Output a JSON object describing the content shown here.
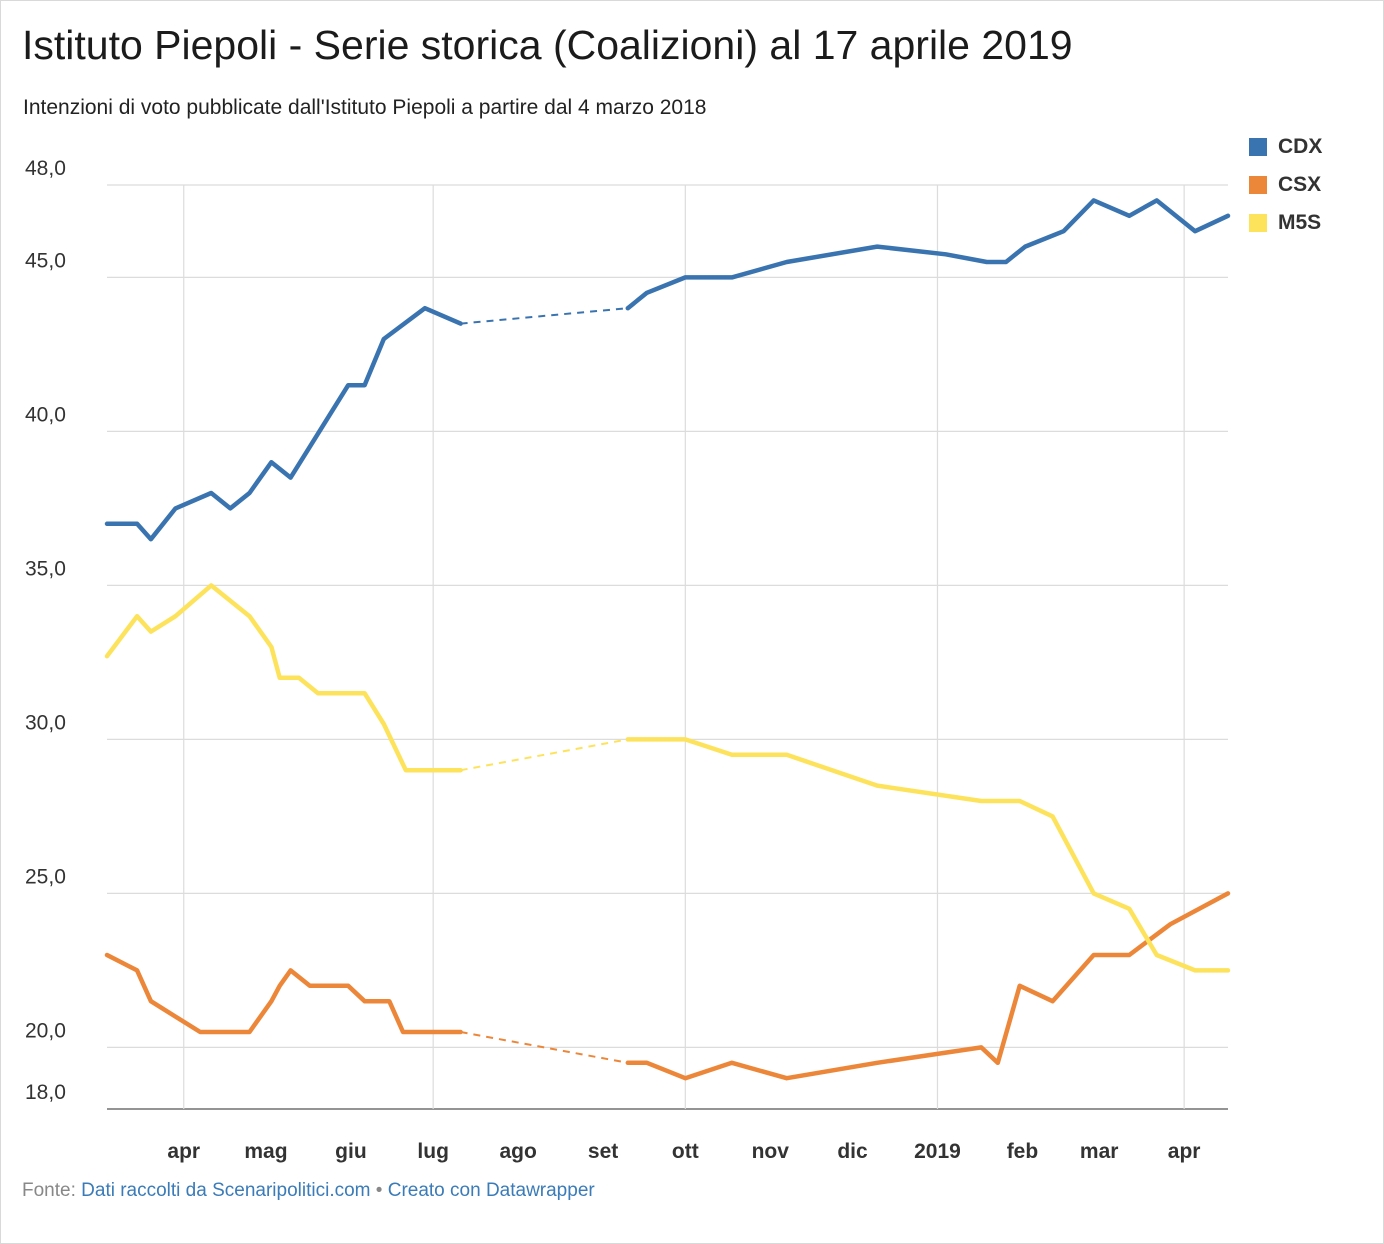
{
  "title": "Istituto Piepoli - Serie storica (Coalizioni) al 17 aprile 2019",
  "subtitle": "Intenzioni di voto pubblicate dall'Istituto Piepoli a partire dal 4 marzo 2018",
  "footer": {
    "source_prefix": "Fonte:",
    "source_link": "Dati raccolti da Scenaripolitici.com",
    "separator": "•",
    "made_with": "Creato con Datawrapper"
  },
  "legend": [
    {
      "name": "CDX",
      "color": "#3a74b0"
    },
    {
      "name": "CSX",
      "color": "#ec873a"
    },
    {
      "name": "M5S",
      "color": "#fde35c"
    }
  ],
  "chart_data": {
    "type": "line",
    "title": "Istituto Piepoli - Serie storica (Coalizioni) al 17 aprile 2019",
    "xlabel": "",
    "ylabel": "",
    "ylim": [
      18,
      48
    ],
    "xlim": [
      "2018-03-04",
      "2019-04-17"
    ],
    "y_ticks": [
      {
        "value": 48,
        "label": "48,0"
      },
      {
        "value": 45,
        "label": "45,0"
      },
      {
        "value": 40,
        "label": "40,0"
      },
      {
        "value": 35,
        "label": "35,0"
      },
      {
        "value": 30,
        "label": "30,0"
      },
      {
        "value": 25,
        "label": "25,0"
      },
      {
        "value": 20,
        "label": "20,0"
      },
      {
        "value": 18,
        "label": "18,0"
      }
    ],
    "x_ticks": [
      {
        "date": "2018-04-01",
        "label": "apr",
        "grid": true
      },
      {
        "date": "2018-05-01",
        "label": "mag",
        "grid": false
      },
      {
        "date": "2018-06-01",
        "label": "giu",
        "grid": false
      },
      {
        "date": "2018-07-01",
        "label": "lug",
        "grid": true
      },
      {
        "date": "2018-08-01",
        "label": "ago",
        "grid": false
      },
      {
        "date": "2018-09-01",
        "label": "set",
        "grid": false
      },
      {
        "date": "2018-10-01",
        "label": "ott",
        "grid": true
      },
      {
        "date": "2018-11-01",
        "label": "nov",
        "grid": false
      },
      {
        "date": "2018-12-01",
        "label": "dic",
        "grid": false
      },
      {
        "date": "2019-01-01",
        "label": "2019",
        "grid": true
      },
      {
        "date": "2019-02-01",
        "label": "feb",
        "grid": false
      },
      {
        "date": "2019-03-01",
        "label": "mar",
        "grid": false
      },
      {
        "date": "2019-04-01",
        "label": "apr",
        "grid": true
      }
    ],
    "gap": {
      "from": "2018-07-11",
      "to": "2018-09-10"
    },
    "series": [
      {
        "name": "CDX",
        "color": "#3a74b0",
        "points": [
          [
            "2018-03-04",
            37.0
          ],
          [
            "2018-03-15",
            37.0
          ],
          [
            "2018-03-20",
            36.5
          ],
          [
            "2018-03-29",
            37.5
          ],
          [
            "2018-04-11",
            38.0
          ],
          [
            "2018-04-18",
            37.5
          ],
          [
            "2018-04-25",
            38.0
          ],
          [
            "2018-05-03",
            39.0
          ],
          [
            "2018-05-10",
            38.5
          ],
          [
            "2018-05-17",
            39.5
          ],
          [
            "2018-05-31",
            41.5
          ],
          [
            "2018-06-06",
            41.5
          ],
          [
            "2018-06-13",
            43.0
          ],
          [
            "2018-06-28",
            44.0
          ],
          [
            "2018-07-11",
            43.5
          ],
          [
            "2018-09-10",
            44.0
          ],
          [
            "2018-09-17",
            44.5
          ],
          [
            "2018-10-01",
            45.0
          ],
          [
            "2018-10-18",
            45.0
          ],
          [
            "2018-11-07",
            45.5
          ],
          [
            "2018-12-10",
            46.0
          ],
          [
            "2019-01-04",
            45.75
          ],
          [
            "2019-01-19",
            45.5
          ],
          [
            "2019-01-26",
            45.5
          ],
          [
            "2019-02-02",
            46.0
          ],
          [
            "2019-02-16",
            46.5
          ],
          [
            "2019-02-27",
            47.5
          ],
          [
            "2019-03-12",
            47.0
          ],
          [
            "2019-03-22",
            47.5
          ],
          [
            "2019-04-05",
            46.5
          ],
          [
            "2019-04-17",
            47.0
          ]
        ]
      },
      {
        "name": "CSX",
        "color": "#ec873a",
        "points": [
          [
            "2018-03-04",
            23.0
          ],
          [
            "2018-03-15",
            22.5
          ],
          [
            "2018-03-20",
            21.5
          ],
          [
            "2018-03-29",
            21.0
          ],
          [
            "2018-04-07",
            20.5
          ],
          [
            "2018-04-25",
            20.5
          ],
          [
            "2018-05-03",
            21.5
          ],
          [
            "2018-05-06",
            22.0
          ],
          [
            "2018-05-10",
            22.5
          ],
          [
            "2018-05-17",
            22.0
          ],
          [
            "2018-05-31",
            22.0
          ],
          [
            "2018-06-06",
            21.5
          ],
          [
            "2018-06-15",
            21.5
          ],
          [
            "2018-06-20",
            20.5
          ],
          [
            "2018-07-11",
            20.5
          ],
          [
            "2018-09-10",
            19.5
          ],
          [
            "2018-09-17",
            19.5
          ],
          [
            "2018-10-01",
            19.0
          ],
          [
            "2018-10-18",
            19.5
          ],
          [
            "2018-11-07",
            19.0
          ],
          [
            "2018-12-10",
            19.5
          ],
          [
            "2019-01-17",
            20.0
          ],
          [
            "2019-01-23",
            19.5
          ],
          [
            "2019-01-31",
            22.0
          ],
          [
            "2019-02-12",
            21.5
          ],
          [
            "2019-02-27",
            23.0
          ],
          [
            "2019-03-12",
            23.0
          ],
          [
            "2019-03-27",
            24.0
          ],
          [
            "2019-04-17",
            25.0
          ]
        ]
      },
      {
        "name": "M5S",
        "color": "#fde35c",
        "points": [
          [
            "2018-03-04",
            32.7
          ],
          [
            "2018-03-15",
            34.0
          ],
          [
            "2018-03-20",
            33.5
          ],
          [
            "2018-03-29",
            34.0
          ],
          [
            "2018-04-11",
            35.0
          ],
          [
            "2018-04-25",
            34.0
          ],
          [
            "2018-05-03",
            33.0
          ],
          [
            "2018-05-06",
            32.0
          ],
          [
            "2018-05-13",
            32.0
          ],
          [
            "2018-05-20",
            31.5
          ],
          [
            "2018-06-06",
            31.5
          ],
          [
            "2018-06-13",
            30.5
          ],
          [
            "2018-06-21",
            29.0
          ],
          [
            "2018-07-11",
            29.0
          ],
          [
            "2018-09-10",
            30.0
          ],
          [
            "2018-10-01",
            30.0
          ],
          [
            "2018-10-18",
            29.5
          ],
          [
            "2018-11-07",
            29.5
          ],
          [
            "2018-12-10",
            28.5
          ],
          [
            "2019-01-17",
            28.0
          ],
          [
            "2019-01-31",
            28.0
          ],
          [
            "2019-02-12",
            27.5
          ],
          [
            "2019-02-27",
            25.0
          ],
          [
            "2019-03-12",
            24.5
          ],
          [
            "2019-03-22",
            23.0
          ],
          [
            "2019-04-05",
            22.5
          ],
          [
            "2019-04-17",
            22.5
          ]
        ]
      }
    ]
  }
}
